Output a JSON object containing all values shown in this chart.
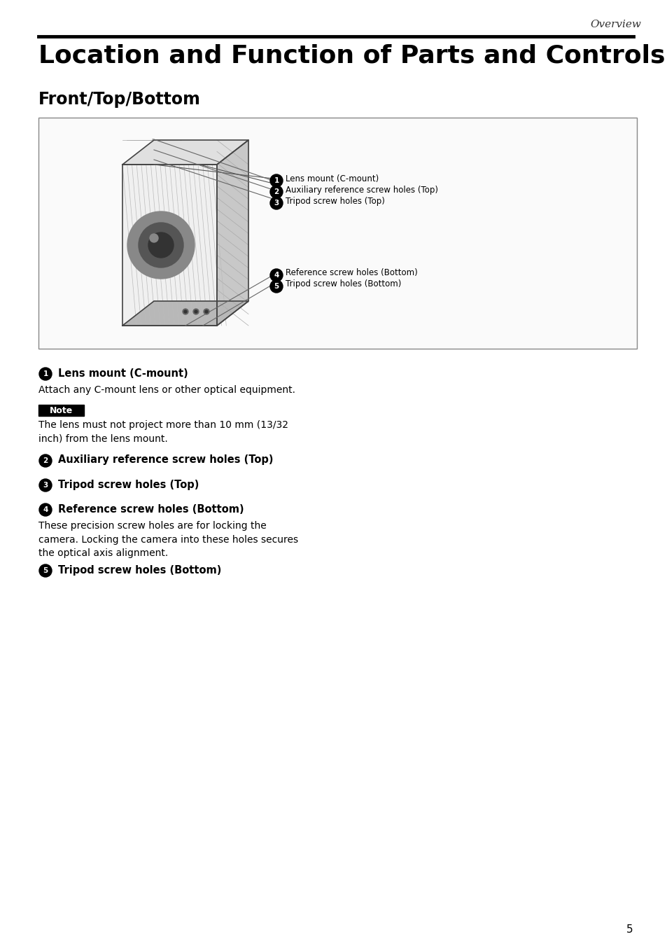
{
  "page_title": "Location and Function of Parts and Controls",
  "section_title": "Front/Top/Bottom",
  "header_label": "Overview",
  "page_number": "5",
  "items": [
    {
      "num": "1",
      "bold_text": "Lens mount (C-mount)",
      "body_text": "Attach any C-mount lens or other optical equipment."
    },
    {
      "num": "2",
      "bold_text": "Auxiliary reference screw holes (Top)",
      "body_text": ""
    },
    {
      "num": "3",
      "bold_text": "Tripod screw holes (Top)",
      "body_text": ""
    },
    {
      "num": "4",
      "bold_text": "Reference screw holes (Bottom)",
      "body_text": "These precision screw holes are for locking the\ncamera. Locking the camera into these holes secures\nthe optical axis alignment."
    },
    {
      "num": "5",
      "bold_text": "Tripod screw holes (Bottom)",
      "body_text": ""
    }
  ],
  "note_text": "The lens must not project more than 10 mm (13/32\ninch) from the lens mount.",
  "bg_color": "#ffffff",
  "text_color": "#000000",
  "box_bg": "#ffffff",
  "box_border": "#555555"
}
